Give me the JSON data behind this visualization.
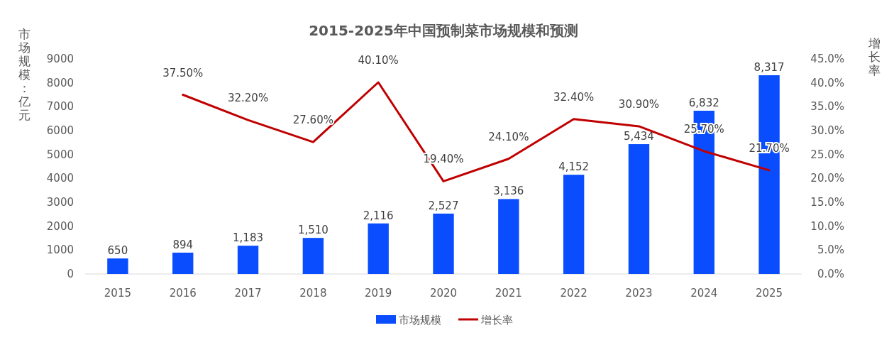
{
  "chart_data": {
    "type": "bar",
    "title": "2015-2025年中国预制菜市场规模和预测",
    "ylabel": "市场规模：亿元",
    "y2label": "增长率",
    "categories": [
      "2015",
      "2016",
      "2017",
      "2018",
      "2019",
      "2020",
      "2021",
      "2022",
      "2023",
      "2024",
      "2025"
    ],
    "series": [
      {
        "name": "市场规模",
        "color": "#0a4dff",
        "values": [
          650,
          894,
          1183,
          1510,
          2116,
          2527,
          3136,
          4152,
          5434,
          6832,
          8317
        ],
        "value_labels": [
          "650",
          "894",
          "1,183",
          "1,510",
          "2,116",
          "2,527",
          "3,136",
          "4,152",
          "5,434",
          "6,832",
          "8,317"
        ]
      },
      {
        "name": "增长率",
        "type": "line",
        "axis": "y2",
        "color": "#c00000",
        "values": [
          null,
          37.5,
          32.2,
          27.6,
          40.1,
          19.4,
          24.1,
          32.4,
          30.9,
          25.7,
          21.7
        ],
        "value_labels": [
          null,
          "37.50%",
          "32.20%",
          "27.60%",
          "40.10%",
          "19.40%",
          "24.10%",
          "32.40%",
          "30.90%",
          "25.70%",
          "21.70%"
        ]
      }
    ],
    "ylim": [
      0,
      9000
    ],
    "yticks": [
      0,
      1000,
      2000,
      3000,
      4000,
      5000,
      6000,
      7000,
      8000,
      9000
    ],
    "y2lim": [
      0,
      45
    ],
    "y2ticks": [
      {
        "value": 0,
        "label": "0.0%"
      },
      {
        "value": 5,
        "label": "5.0%"
      },
      {
        "value": 10,
        "label": "10.0%"
      },
      {
        "value": 15,
        "label": "15.0%"
      },
      {
        "value": 20,
        "label": "20.0%"
      },
      {
        "value": 25,
        "label": "25.0%"
      },
      {
        "value": 30,
        "label": "30.0%"
      },
      {
        "value": 35,
        "label": "35.0%"
      },
      {
        "value": 40,
        "label": "40.0%"
      },
      {
        "value": 45,
        "label": "45.0%"
      }
    ],
    "grid": false,
    "legend": "bottom"
  }
}
